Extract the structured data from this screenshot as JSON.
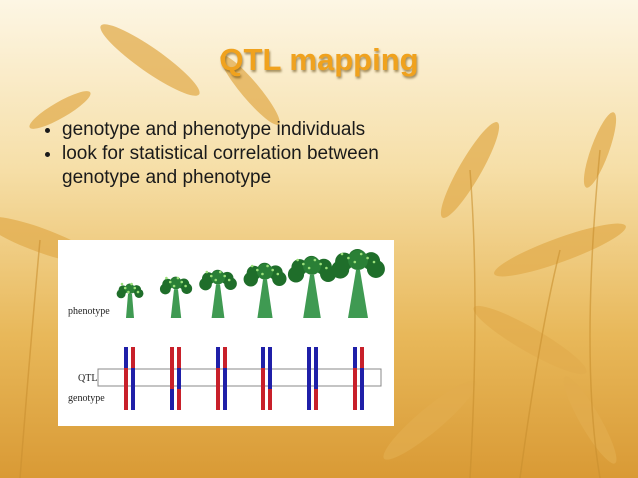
{
  "slide": {
    "title": "QTL mapping",
    "bullets": [
      "genotype and phenotype individuals",
      "look for statistical correlation between genotype and phenotype"
    ],
    "figure": {
      "labels": {
        "phenotype": "phenotype",
        "qtl": "QTL",
        "genotype": "genotype"
      }
    }
  }
}
